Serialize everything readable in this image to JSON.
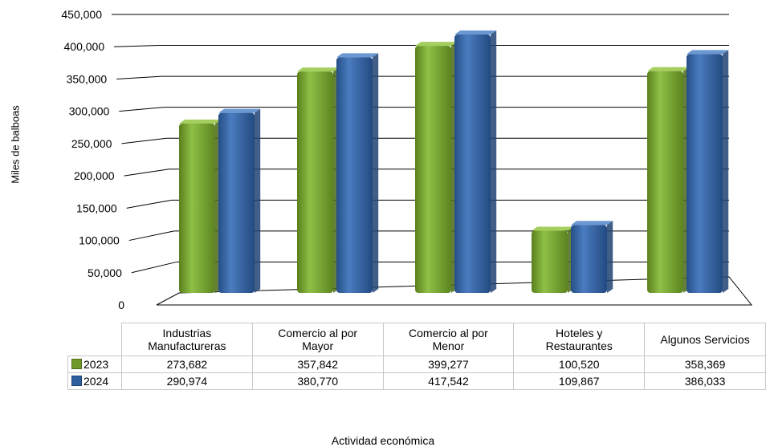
{
  "chart_data": {
    "type": "bar",
    "title": "",
    "xlabel": "Actividad económica",
    "ylabel": "Miles de balboas",
    "ylim": [
      0,
      450000
    ],
    "yticks": [
      "0",
      "50,000",
      "100,000",
      "150,000",
      "200,000",
      "250,000",
      "300,000",
      "350,000",
      "400,000",
      "450,000"
    ],
    "categories": [
      [
        "Industrias",
        "Manufactureras"
      ],
      [
        "Comercio al por",
        "Mayor"
      ],
      [
        "Comercio al por",
        "Menor"
      ],
      [
        "Hoteles y",
        "Restaurantes"
      ],
      [
        "Algunos Servicios"
      ]
    ],
    "series": [
      {
        "name": "2023",
        "color": "#6f9a2a",
        "values": [
          273682,
          357842,
          399277,
          100520,
          358369
        ],
        "labels": [
          "273,682",
          "357,842",
          "399,277",
          "100,520",
          "358,369"
        ]
      },
      {
        "name": "2024",
        "color": "#2f5f9d",
        "values": [
          290974,
          380770,
          417542,
          109867,
          386033
        ],
        "labels": [
          "290,974",
          "380,770",
          "417,542",
          "109,867",
          "386,033"
        ]
      }
    ],
    "grid": true,
    "legend": "in data table"
  }
}
